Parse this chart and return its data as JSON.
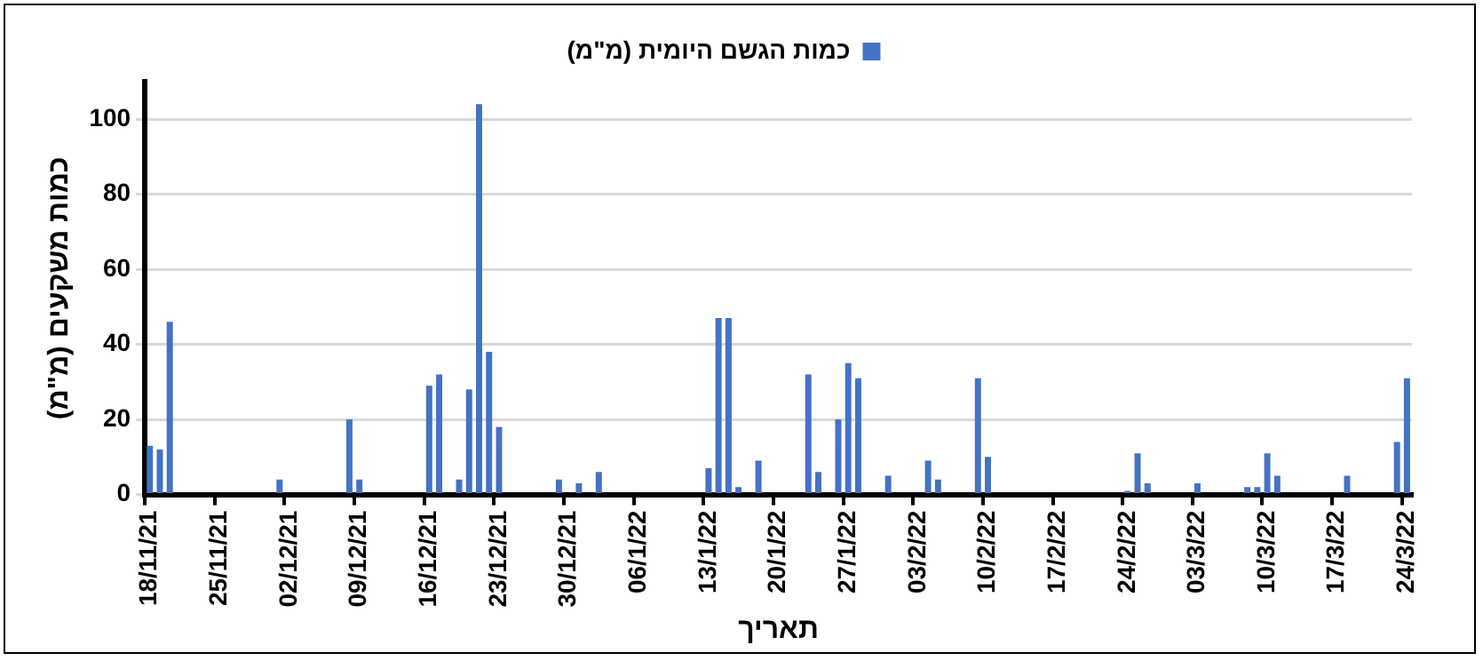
{
  "chart_data": {
    "type": "bar",
    "xlabel": "תאריך",
    "ylabel": "כמות משקעים (מ\"מ)",
    "categories": [
      "18/11/21",
      null,
      null,
      null,
      null,
      null,
      null,
      "25/11/21",
      null,
      null,
      null,
      null,
      null,
      null,
      "02/12/21",
      null,
      null,
      null,
      null,
      null,
      null,
      "09/12/21",
      null,
      null,
      null,
      null,
      null,
      null,
      "16/12/21",
      null,
      null,
      null,
      null,
      null,
      null,
      "23/12/21",
      null,
      null,
      null,
      null,
      null,
      null,
      "30/12/21",
      null,
      null,
      null,
      null,
      null,
      null,
      "06/1/22",
      null,
      null,
      null,
      null,
      null,
      null,
      "13/1/22",
      null,
      null,
      null,
      null,
      null,
      null,
      "20/1/22",
      null,
      null,
      null,
      null,
      null,
      null,
      "27/1/22",
      null,
      null,
      null,
      null,
      null,
      null,
      "03/2/22",
      null,
      null,
      null,
      null,
      null,
      null,
      "10/2/22",
      null,
      null,
      null,
      null,
      null,
      null,
      "17/2/22",
      null,
      null,
      null,
      null,
      null,
      null,
      "24/2/22",
      null,
      null,
      null,
      null,
      null,
      null,
      "03/3/22",
      null,
      null,
      null,
      null,
      null,
      null,
      "10/3/22",
      null,
      null,
      null,
      null,
      null,
      null,
      "17/3/22",
      null,
      null,
      null,
      null,
      null,
      null,
      "24/3/22"
    ],
    "series": [
      {
        "name": "כמות הגשם היומית (מ\"מ)",
        "color": "#4472c4",
        "values": [
          13,
          12,
          46,
          0,
          0,
          0,
          0,
          0,
          0,
          0,
          0,
          0,
          0,
          4,
          0,
          0,
          0,
          0,
          0,
          0,
          20,
          4,
          0,
          0,
          0,
          0,
          0,
          0,
          29,
          32,
          0,
          4,
          28,
          104,
          38,
          18,
          0,
          0,
          0,
          0,
          0,
          4,
          0,
          3,
          0,
          6,
          0,
          0,
          0,
          0,
          0,
          0,
          0,
          0,
          0,
          0,
          7,
          47,
          47,
          2,
          0,
          9,
          0,
          0,
          0,
          0,
          32,
          6,
          0,
          20,
          35,
          31,
          0,
          0,
          5,
          0,
          0,
          0,
          9,
          4,
          0,
          0,
          0,
          31,
          10,
          0,
          0,
          0,
          0,
          0,
          0,
          0,
          0,
          0,
          0,
          0,
          0,
          0,
          1,
          11,
          3,
          0,
          0,
          0,
          0,
          3,
          0,
          0,
          0,
          0,
          2,
          2,
          11,
          5,
          0,
          0,
          0,
          0,
          0,
          0,
          5,
          0,
          0,
          0,
          0,
          14,
          31
        ]
      }
    ],
    "ylim": [
      0,
      110
    ],
    "yticks": [
      0,
      20,
      40,
      60,
      80,
      100
    ],
    "grid": "y",
    "legend": "top"
  }
}
